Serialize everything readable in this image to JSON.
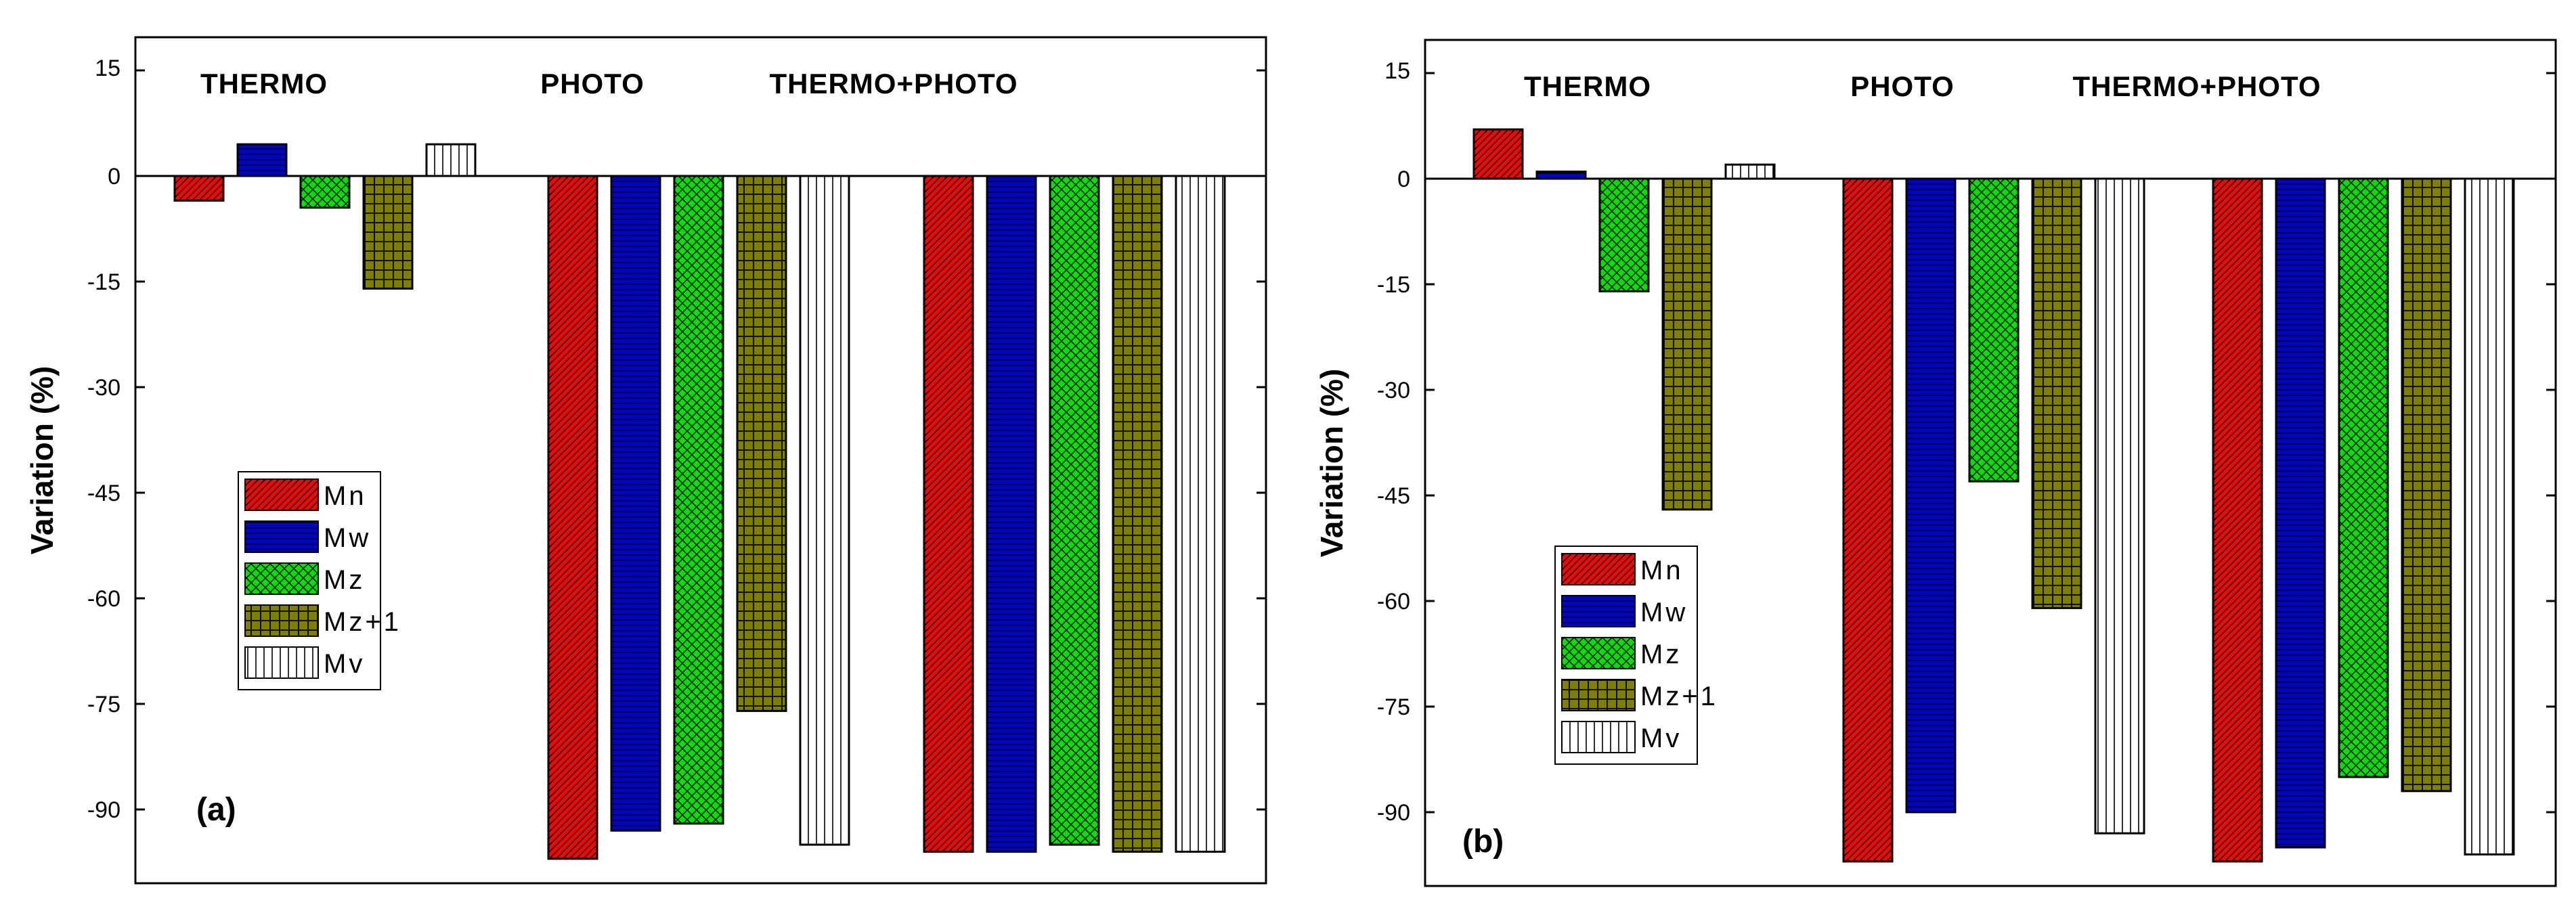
{
  "chart_data": [
    {
      "type": "bar",
      "panel_label": "(a)",
      "ylabel": "Variation (%)",
      "xlabel": "",
      "ylim": [
        -105,
        20
      ],
      "yticks": [
        "15",
        "0",
        "-15",
        "-30",
        "-45",
        "-60",
        "-75",
        "-90"
      ],
      "groups": [
        "THERMO",
        "PHOTO",
        "THERMO+PHOTO"
      ],
      "legend": [
        "Mn",
        "Mw",
        "Mz",
        "Mz+1",
        "Mv"
      ],
      "series": [
        {
          "name": "Mn",
          "values": [
            -3.5,
            -97,
            -96
          ]
        },
        {
          "name": "Mw",
          "values": [
            4.5,
            -93,
            -96
          ]
        },
        {
          "name": "Mz",
          "values": [
            -4.5,
            -92,
            -95
          ]
        },
        {
          "name": "Mz+1",
          "values": [
            -16,
            -76,
            -96
          ]
        },
        {
          "name": "Mv",
          "values": [
            4.5,
            -95,
            -96
          ]
        }
      ]
    },
    {
      "type": "bar",
      "panel_label": "(b)",
      "ylabel": "Variation (%)",
      "xlabel": "",
      "ylim": [
        -105,
        20
      ],
      "yticks": [
        "15",
        "0",
        "-15",
        "-30",
        "-45",
        "-60",
        "-75",
        "-90"
      ],
      "groups": [
        "THERMO",
        "PHOTO",
        "THERMO+PHOTO"
      ],
      "legend": [
        "Mn",
        "Mw",
        "Mz",
        "Mz+1",
        "Mv"
      ],
      "series": [
        {
          "name": "Mn",
          "values": [
            7,
            -97,
            -97
          ]
        },
        {
          "name": "Mw",
          "values": [
            1,
            -90,
            -95
          ]
        },
        {
          "name": "Mz",
          "values": [
            -16,
            -43,
            -85
          ]
        },
        {
          "name": "Mz+1",
          "values": [
            -47,
            -61,
            -87
          ]
        },
        {
          "name": "Mv",
          "values": [
            2,
            -93,
            -96
          ]
        }
      ]
    }
  ],
  "colors": {
    "Mn": "#ff0000",
    "Mw": "#0000cc",
    "Mz": "#00dd00",
    "Mz+1": "#808000",
    "Mv": "#ffffff"
  }
}
